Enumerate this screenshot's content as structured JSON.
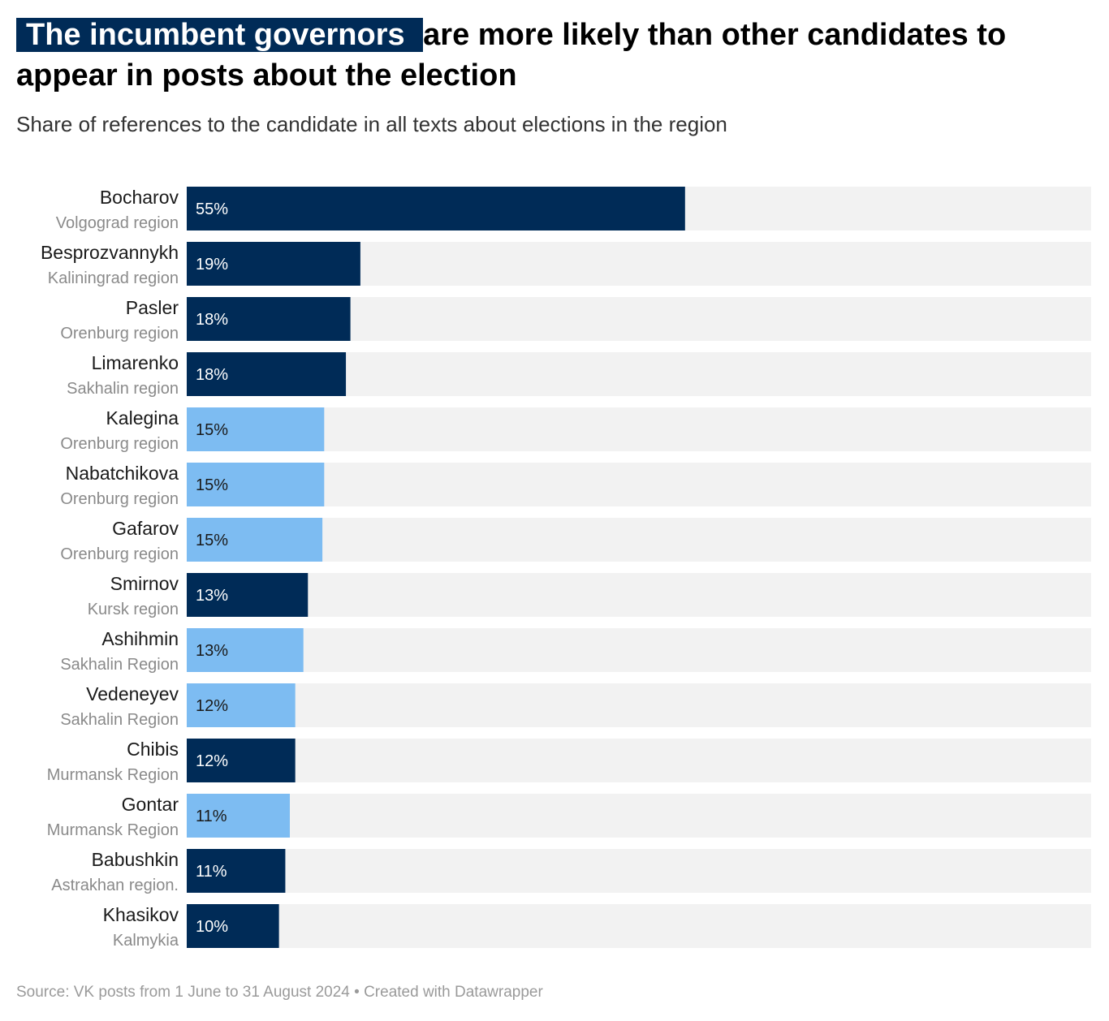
{
  "title": {
    "highlight": " The incumbent governors ",
    "rest": " are more likely than other candidates to appear in posts about the election"
  },
  "subtitle": "Share of references to the candidate in all texts about elections in the region",
  "source": "Source: VK posts from 1 June to 31 August 2024 • Created with Datawrapper",
  "colors": {
    "incumbent": "#002b57",
    "other": "#7dbcf2",
    "background_bar": "#f2f2f2",
    "name_text": "#1a1a1a",
    "region_text": "#8a8a8a"
  },
  "chart_data": {
    "type": "bar",
    "orientation": "horizontal",
    "xlim": [
      0,
      100
    ],
    "categories": [
      "Bocharov",
      "Besprozvannykh",
      "Pasler",
      "Limarenko",
      "Kalegina",
      "Nabatchikova",
      "Gafarov",
      "Smirnov",
      "Ashihmin",
      "Vedeneyev",
      "Chibis",
      "Gontar",
      "Babushkin",
      "Khasikov"
    ],
    "regions": [
      "Volgograd region",
      "Kaliningrad region",
      "Orenburg region",
      "Sakhalin region",
      "Orenburg region",
      "Orenburg region",
      "Orenburg region",
      "Kursk region",
      "Sakhalin Region",
      "Sakhalin Region",
      "Murmansk Region",
      "Murmansk Region",
      "Astrakhan region.",
      "Kalmykia"
    ],
    "values": [
      55.1,
      19.2,
      18.1,
      17.6,
      15.2,
      15.2,
      15.0,
      13.4,
      12.9,
      12.0,
      12.0,
      11.4,
      10.9,
      10.2
    ],
    "labels": [
      "55%",
      "19%",
      "18%",
      "18%",
      "15%",
      "15%",
      "15%",
      "13%",
      "13%",
      "12%",
      "12%",
      "11%",
      "11%",
      "10%"
    ],
    "incumbent": [
      true,
      true,
      true,
      true,
      false,
      false,
      false,
      true,
      false,
      false,
      true,
      false,
      true,
      true
    ]
  }
}
